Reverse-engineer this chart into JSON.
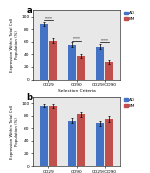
{
  "panel_a": {
    "label": "a",
    "categories": [
      "CD29",
      "CD90",
      "CD29/CD90"
    ],
    "ao_values": [
      88,
      55,
      52
    ],
    "bm_values": [
      62,
      38,
      28
    ],
    "ao_errors": [
      3,
      4,
      4
    ],
    "bm_errors": [
      4,
      3,
      3
    ],
    "ylim": [
      0,
      110
    ],
    "yticks": [
      0,
      20,
      40,
      60,
      80,
      100
    ],
    "ylabel": "Expression Within Total Cell\nPopulation (%)",
    "annotations": [
      "****",
      "****",
      "****"
    ]
  },
  "panel_b": {
    "label": "b",
    "categories": [
      "CD29",
      "CD90",
      "CD29/CD90"
    ],
    "ao_values": [
      96,
      72,
      68
    ],
    "bm_values": [
      95,
      82,
      75
    ],
    "ao_errors": [
      2,
      4,
      4
    ],
    "bm_errors": [
      3,
      4,
      5
    ],
    "ylim": [
      0,
      110
    ],
    "yticks": [
      0,
      20,
      40,
      60,
      80,
      100
    ],
    "ylabel": "Expression Within Total Cell\nPopulation (%)",
    "annotations": [
      "",
      "",
      ""
    ]
  },
  "ao_color": "#4472C4",
  "bm_color": "#C0504D",
  "bar_width": 0.28,
  "xlabel": "Selection Criteria",
  "legend_labels": [
    "AO",
    "BM"
  ],
  "background_color": "#E8E8E8",
  "figure_background": "#FFFFFF"
}
